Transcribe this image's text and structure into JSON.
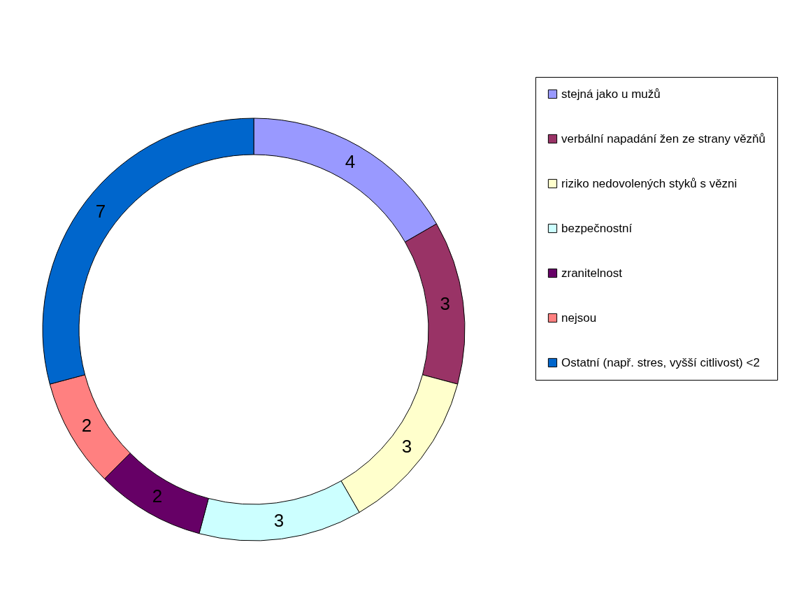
{
  "chart_data": {
    "type": "donut",
    "categories": [
      "stejná jako u mužů",
      "verbální napadání žen ze strany vězňů",
      "riziko nedovolených styků s vězni",
      "bezpečnostní",
      "zranitelnost",
      "nejsou",
      "Ostatní (např. stres, vyšší citlivost) <2"
    ],
    "values": [
      4,
      3,
      3,
      3,
      2,
      2,
      7
    ],
    "colors": [
      "#9999ff",
      "#993366",
      "#ffffcc",
      "#ccffff",
      "#660066",
      "#ff8080",
      "#0066cc"
    ],
    "data_labels": true,
    "legend": "right"
  }
}
